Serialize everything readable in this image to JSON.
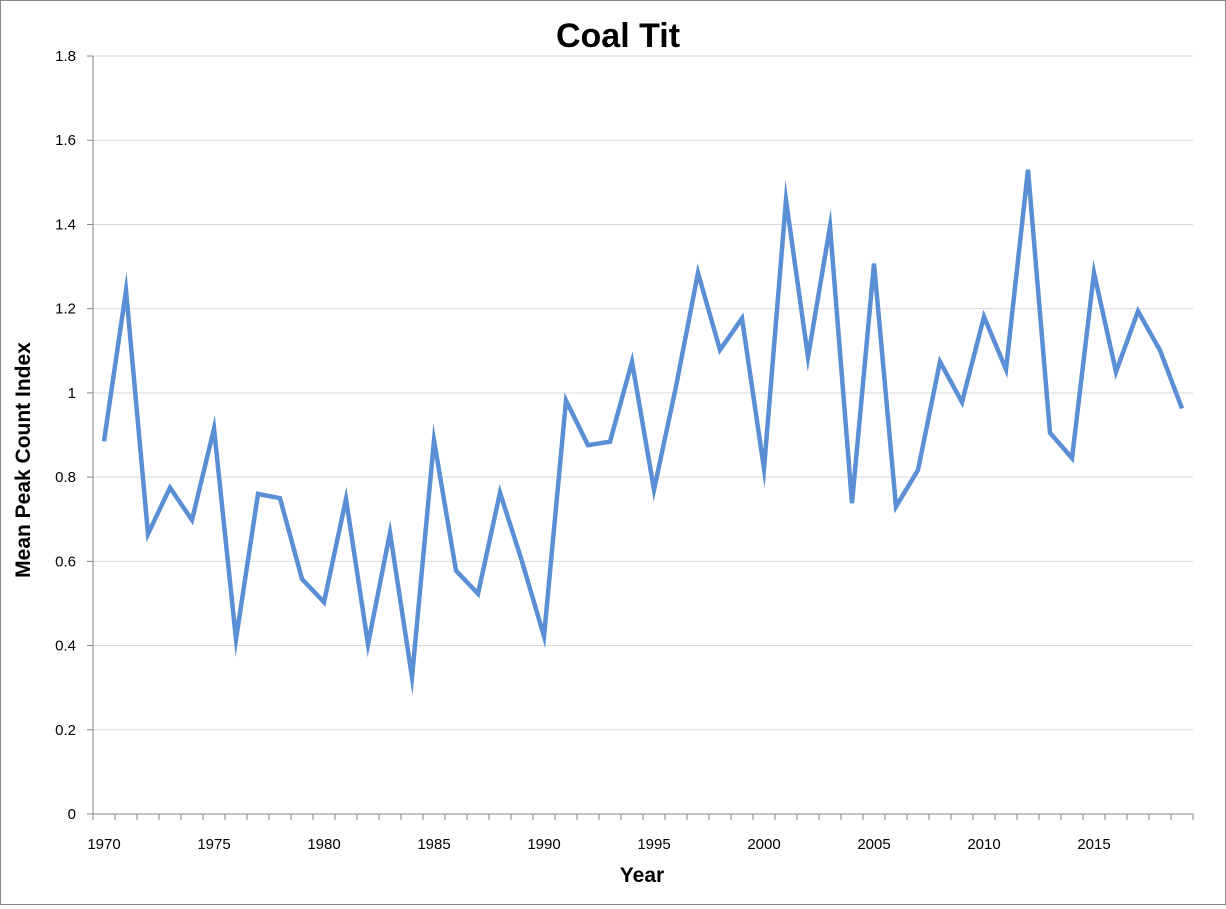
{
  "chart_data": {
    "type": "line",
    "title": "Coal Tit",
    "xlabel": "Year",
    "ylabel": "Mean Peak Count Index",
    "ylim": [
      0,
      1.8
    ],
    "y_ticks": [
      "0",
      "0.2",
      "0.4",
      "0.6",
      "0.8",
      "1",
      "1.2",
      "1.4",
      "1.6",
      "1.8"
    ],
    "xlim": [
      1970,
      2019
    ],
    "x_ticks": [
      "1970",
      "1975",
      "1980",
      "1985",
      "1990",
      "1995",
      "2000",
      "2005",
      "2010",
      "2015"
    ],
    "grid": "horizontal",
    "line_color": "#5a8fd6",
    "x": [
      1970,
      1971,
      1972,
      1973,
      1974,
      1975,
      1976,
      1977,
      1978,
      1979,
      1980,
      1981,
      1982,
      1983,
      1984,
      1985,
      1986,
      1987,
      1988,
      1989,
      1990,
      1991,
      1992,
      1993,
      1994,
      1995,
      1996,
      1997,
      1998,
      1999,
      2000,
      2001,
      2002,
      2003,
      2004,
      2005,
      2006,
      2007,
      2008,
      2009,
      2010,
      2011,
      2012,
      2013,
      2014,
      2015,
      2016,
      2017,
      2018,
      2019
    ],
    "series": [
      {
        "values": [
          0.885,
          1.243,
          0.665,
          0.775,
          0.698,
          0.915,
          0.415,
          0.76,
          0.75,
          0.558,
          0.503,
          0.748,
          0.403,
          0.668,
          0.325,
          0.887,
          0.578,
          0.523,
          0.763,
          0.6,
          0.422,
          0.982,
          0.876,
          0.884,
          1.074,
          0.77,
          1.015,
          1.285,
          1.102,
          1.177,
          0.82,
          1.458,
          1.085,
          1.395,
          0.738,
          1.307,
          0.73,
          0.817,
          1.074,
          0.978,
          1.181,
          1.056,
          1.53,
          0.905,
          0.845,
          1.285,
          1.05,
          1.194,
          1.101,
          0.963
        ]
      }
    ]
  }
}
